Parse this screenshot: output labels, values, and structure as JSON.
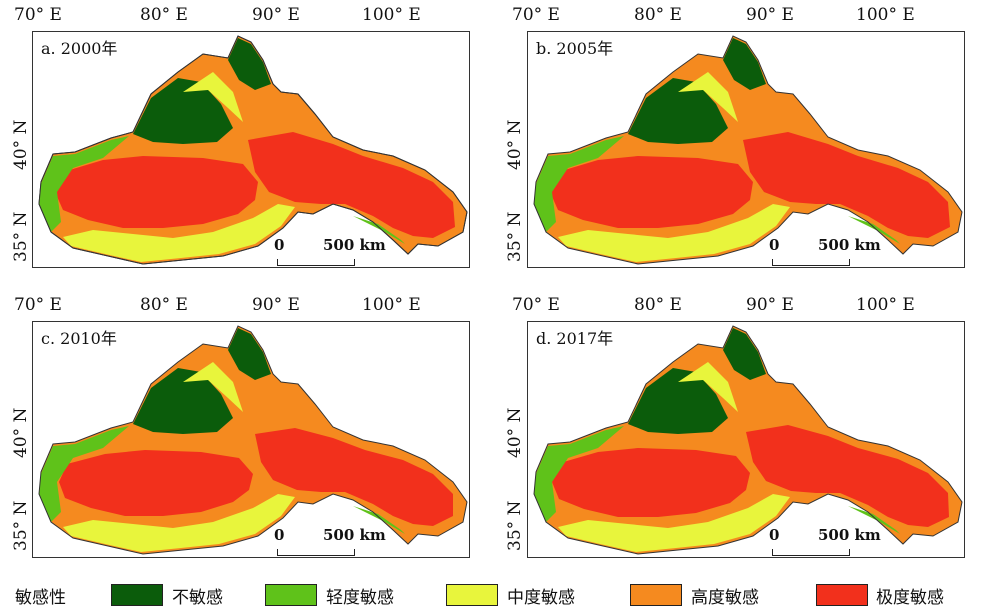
{
  "legend": {
    "title": "敏感性",
    "classes": [
      {
        "label": "不敏感",
        "color": "#0b5c0b"
      },
      {
        "label": "轻度敏感",
        "color": "#5fc21a"
      },
      {
        "label": "中度敏感",
        "color": "#e8f53c"
      },
      {
        "label": "高度敏感",
        "color": "#f58a1f"
      },
      {
        "label": "极度敏感",
        "color": "#f2301c"
      }
    ]
  },
  "axes": {
    "lon_ticks": [
      "70° E",
      "80° E",
      "90° E",
      "100° E"
    ],
    "lat_ticks": [
      "40° N",
      "35° N"
    ]
  },
  "scale_bar": {
    "start": "0",
    "end": "500 km"
  },
  "panels": [
    {
      "label": "a. 2000年"
    },
    {
      "label": "b. 2005年"
    },
    {
      "label": "c. 2010年"
    },
    {
      "label": "d. 2017年"
    }
  ]
}
